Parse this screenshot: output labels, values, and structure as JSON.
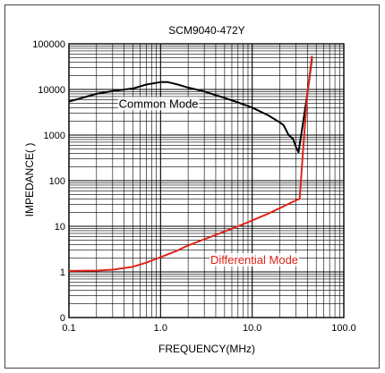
{
  "chart_data": {
    "type": "line",
    "title": "SCM9040-472Y",
    "xlabel": "FREQUENCY(MHz)",
    "ylabel": "IMPEDANCE(  )",
    "x_scale": "log",
    "y_scale": "log",
    "xlim": [
      0.1,
      100
    ],
    "ylim_labels": [
      "0",
      "1",
      "10",
      "100",
      "1000",
      "10000",
      "100000"
    ],
    "x_tick_labels": [
      "0.1",
      "1.0",
      "10.0",
      "100.0"
    ],
    "x_tick_values": [
      0.1,
      1,
      10,
      100
    ],
    "y_tick_values": [
      0.1,
      1,
      10,
      100,
      1000,
      10000,
      100000
    ],
    "grid": true,
    "colors": {
      "common": "#000000",
      "differential": "#e0241b",
      "grid": "#000000"
    },
    "series": [
      {
        "name": "Common Mode",
        "x": [
          0.1,
          0.15,
          0.2,
          0.3,
          0.5,
          0.7,
          1.0,
          1.2,
          1.5,
          2,
          3,
          5,
          7,
          10,
          15,
          20,
          22,
          25,
          28,
          30,
          32,
          35,
          40,
          45
        ],
        "y": [
          5400,
          6800,
          8000,
          9200,
          10500,
          12800,
          14500,
          14500,
          13000,
          11000,
          9000,
          6500,
          5200,
          4000,
          2700,
          1900,
          1650,
          1000,
          820,
          550,
          420,
          1300,
          8000,
          48000
        ]
      },
      {
        "name": "Differential Mode",
        "x": [
          0.1,
          0.2,
          0.3,
          0.5,
          0.7,
          1.0,
          1.5,
          2,
          3,
          5,
          7,
          10,
          15,
          20,
          25,
          30,
          33,
          36,
          40,
          45
        ],
        "y": [
          1.05,
          1.07,
          1.12,
          1.3,
          1.6,
          2.1,
          2.9,
          3.8,
          5.2,
          7.7,
          10,
          13.5,
          19,
          25,
          31,
          37,
          40,
          500,
          8000,
          55000
        ]
      }
    ],
    "annotations": [
      {
        "text": "Common Mode",
        "x": 0.35,
        "y": 4000
      },
      {
        "text": "Differential Mode",
        "x": 3.5,
        "y": 1.5
      }
    ]
  }
}
